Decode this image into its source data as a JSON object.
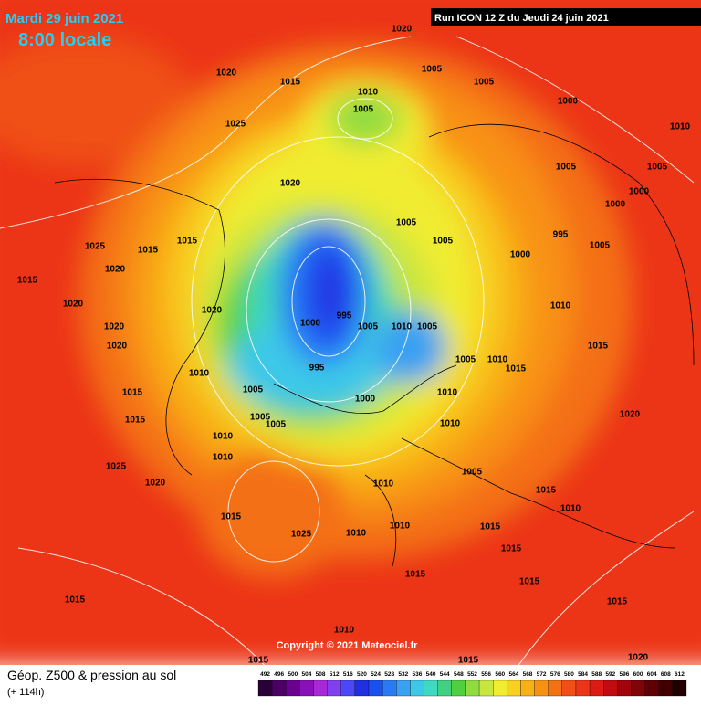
{
  "header": {
    "date": "Mardi 29 juin 2021",
    "time": "8:00 locale",
    "run": "Run ICON 12 Z du Jeudi 24 juin 2021"
  },
  "copyright": "Copyright © 2021 Meteociel.fr",
  "legend": {
    "title": "Géop. Z500 & pression au sol",
    "lead": "(+ 114h)",
    "scale": {
      "values": [
        492,
        496,
        500,
        504,
        508,
        512,
        516,
        520,
        524,
        528,
        532,
        536,
        540,
        544,
        548,
        552,
        556,
        560,
        564,
        568,
        572,
        576,
        580,
        584,
        588,
        592,
        596,
        600,
        604,
        608,
        612
      ],
      "colors": [
        "#2a0038",
        "#4a0064",
        "#6a0090",
        "#8a10b8",
        "#a828d8",
        "#8040f0",
        "#4a48f8",
        "#2030e0",
        "#1a50f0",
        "#2a7af5",
        "#3aa0f2",
        "#3ec8e8",
        "#40d8c0",
        "#40d080",
        "#50d040",
        "#90dc40",
        "#c8e640",
        "#f0ec30",
        "#f8d020",
        "#f8b018",
        "#f89014",
        "#f47014",
        "#f05018",
        "#ec3418",
        "#dc1c14",
        "#c00c10",
        "#a0040c",
        "#800408",
        "#600004",
        "#400000",
        "#200000"
      ]
    }
  },
  "isobar_labels": [
    1020,
    1005,
    1005,
    1015,
    1020,
    1010,
    1005,
    1000,
    1010,
    1025,
    1005,
    1005,
    1020,
    1000,
    1000,
    1005,
    995,
    1005,
    1005,
    1000,
    1025,
    1015,
    1015,
    1020,
    1015,
    1020,
    1020,
    995,
    1000,
    1005,
    1010,
    1005,
    1010,
    1020,
    1020,
    1015,
    1005,
    1010,
    1015,
    1010,
    995,
    1015,
    1005,
    1000,
    1010,
    1015,
    1005,
    1005,
    1010,
    1020,
    1010,
    1010,
    1025,
    1020,
    1005,
    1015,
    1010,
    1015,
    1025,
    1010,
    1015,
    1010,
    1015,
    1015,
    1015,
    1010,
    1015,
    1015,
    1020,
    1015,
    1015,
    1010
  ]
}
